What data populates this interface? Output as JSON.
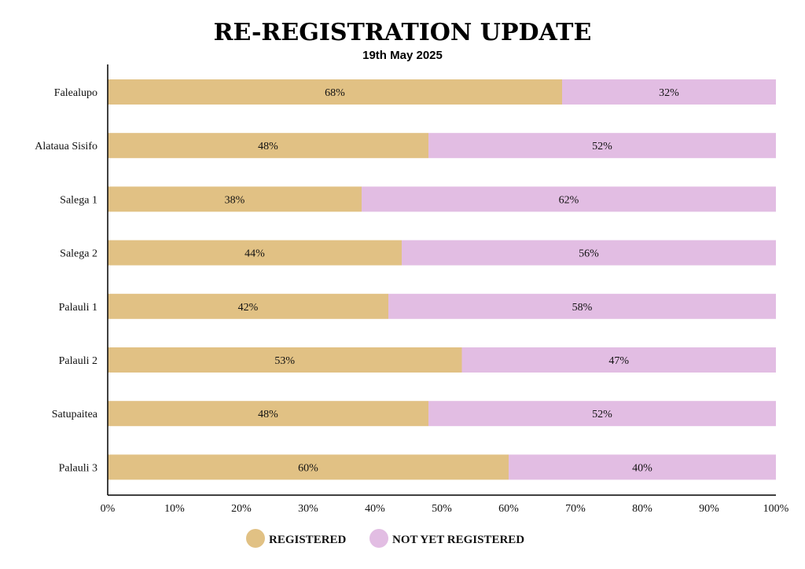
{
  "header": {
    "title": "RE-REGISTRATION UPDATE",
    "subtitle": "19th May 2025"
  },
  "colors": {
    "registered": "#e1c184",
    "not_registered": "#e2bde3",
    "axis": "#000000"
  },
  "chart_data": {
    "type": "bar",
    "orientation": "horizontal",
    "stacked": true,
    "categories": [
      "Falealupo",
      "Alataua Sisifo",
      "Salega 1",
      "Salega 2",
      "Palauli 1",
      "Palauli 2",
      "Satupaitea",
      "Palauli 3"
    ],
    "series": [
      {
        "name": "REGISTERED",
        "values": [
          68,
          48,
          38,
          44,
          42,
          53,
          48,
          60
        ],
        "labels": [
          "68%",
          "48%",
          "38%",
          "44%",
          "42%",
          "53%",
          "48%",
          "60%"
        ]
      },
      {
        "name": "NOT YET REGISTERED",
        "values": [
          32,
          52,
          62,
          56,
          58,
          47,
          52,
          40
        ],
        "labels": [
          "32%",
          "52%",
          "62%",
          "56%",
          "58%",
          "47%",
          "52%",
          "40%"
        ]
      }
    ],
    "xlim": [
      0,
      100
    ],
    "x_ticks": [
      "0%",
      "10%",
      "20%",
      "30%",
      "40%",
      "50%",
      "60%",
      "70%",
      "80%",
      "90%",
      "100%"
    ],
    "grid": false,
    "legend_position": "bottom-center"
  }
}
